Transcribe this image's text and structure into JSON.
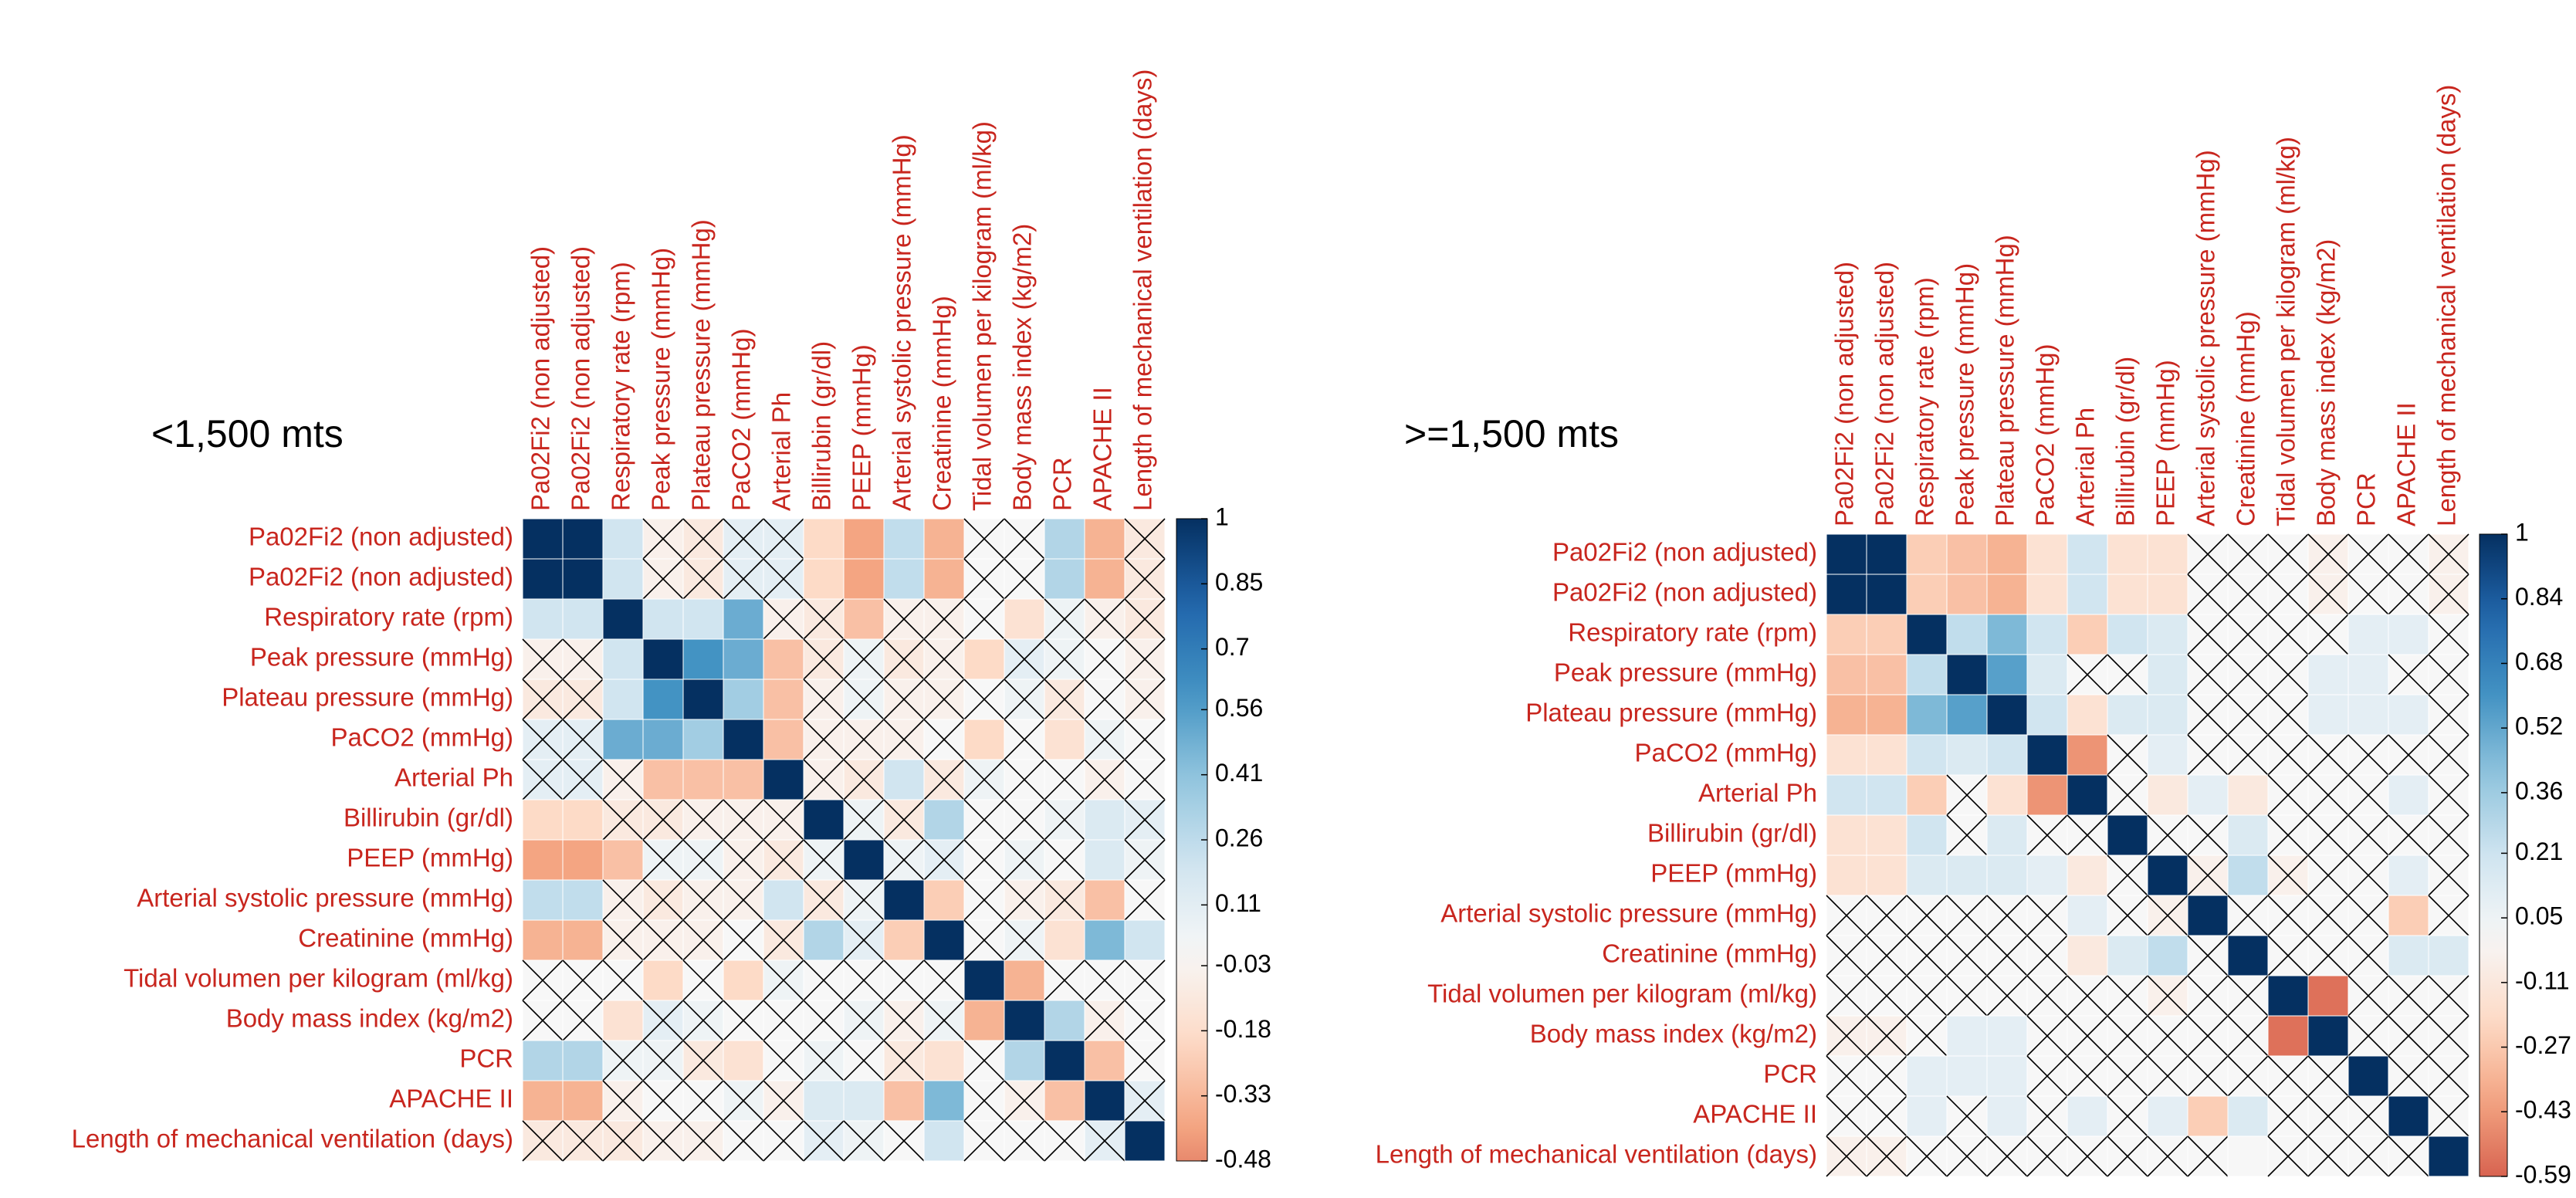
{
  "chart_data": [
    {
      "type": "heatmap",
      "title": "<1,500 mts",
      "colormap": "RdBu",
      "labels": [
        "Pa02Fi2 (non adjusted)",
        "Pa02Fi2 (non adjusted)",
        "Respiratory rate (rpm)",
        "Peak pressure (mmHg)",
        "Plateau pressure (mmHg)",
        "PaCO2 (mmHg)",
        "Arterial Ph",
        "Billirubin (gr/dl)",
        "PEEP (mmHg)",
        "Arterial systolic pressure (mmHg)",
        "Creatinine (mmHg)",
        "Tidal volumen per kilogram (ml/kg)",
        "Body mass index (kg/m2)",
        "PCR",
        "APACHE II",
        "Length of mechanical ventilation (days)"
      ],
      "matrix": [
        [
          1,
          1,
          0.2,
          -0.05,
          -0.1,
          0.1,
          0.1,
          -0.2,
          -0.4,
          0.25,
          -0.35,
          0,
          0,
          0.3,
          -0.35,
          -0.1
        ],
        [
          1,
          1,
          0.2,
          -0.05,
          -0.1,
          0.1,
          0.1,
          -0.2,
          -0.4,
          0.25,
          -0.35,
          0,
          0,
          0.3,
          -0.35,
          -0.1
        ],
        [
          0.2,
          0.2,
          1,
          0.2,
          0.2,
          0.5,
          -0.05,
          -0.1,
          -0.3,
          -0.05,
          -0.05,
          0,
          -0.15,
          0.05,
          -0.05,
          -0.1
        ],
        [
          -0.05,
          -0.05,
          0.2,
          1,
          0.6,
          0.5,
          -0.3,
          -0.1,
          0.05,
          -0.1,
          -0.05,
          -0.2,
          0.1,
          0.05,
          0,
          -0.05
        ],
        [
          -0.1,
          -0.1,
          0.2,
          0.6,
          1,
          0.35,
          -0.3,
          -0.05,
          0.05,
          -0.05,
          -0.05,
          0,
          0.05,
          -0.1,
          0,
          -0.05
        ],
        [
          0.1,
          0.1,
          0.5,
          0.5,
          0.35,
          1,
          -0.3,
          -0.05,
          -0.05,
          -0.05,
          0,
          -0.2,
          0,
          -0.15,
          0.05,
          0
        ],
        [
          0.1,
          0.1,
          -0.05,
          -0.3,
          -0.3,
          -0.3,
          1,
          -0.05,
          -0.1,
          0.2,
          -0.1,
          0.05,
          0,
          0,
          -0.05,
          0
        ],
        [
          -0.2,
          -0.2,
          -0.1,
          -0.1,
          -0.05,
          -0.05,
          -0.05,
          1,
          0.05,
          -0.1,
          0.3,
          0,
          0,
          0.05,
          0.15,
          0.1
        ],
        [
          -0.4,
          -0.4,
          -0.3,
          0.05,
          0.05,
          -0.05,
          -0.1,
          0.05,
          1,
          0.05,
          0.1,
          0,
          0.05,
          0,
          0.15,
          0.05
        ],
        [
          0.25,
          0.25,
          -0.05,
          -0.1,
          -0.05,
          -0.05,
          0.2,
          -0.1,
          0.05,
          1,
          -0.25,
          0,
          -0.05,
          -0.1,
          -0.3,
          0
        ],
        [
          -0.35,
          -0.35,
          -0.05,
          -0.05,
          -0.05,
          0,
          -0.1,
          0.3,
          0.1,
          -0.25,
          1,
          0,
          0.05,
          -0.15,
          0.45,
          0.2
        ],
        [
          0,
          0,
          0,
          -0.2,
          0,
          -0.2,
          0.05,
          0,
          0,
          0,
          0,
          1,
          -0.35,
          0,
          0,
          0
        ],
        [
          0,
          0,
          -0.15,
          0.1,
          0.05,
          0,
          0,
          0,
          0.05,
          -0.05,
          0.05,
          -0.35,
          1,
          0.3,
          -0.05,
          0
        ],
        [
          0.3,
          0.3,
          0.05,
          0.05,
          -0.1,
          -0.15,
          0,
          0.05,
          0,
          -0.1,
          -0.15,
          0,
          0.3,
          1,
          -0.3,
          0
        ],
        [
          -0.35,
          -0.35,
          -0.05,
          0,
          0,
          0.05,
          -0.05,
          0.15,
          0.15,
          -0.3,
          0.45,
          0,
          -0.05,
          -0.3,
          1,
          0.1
        ],
        [
          -0.1,
          -0.1,
          -0.1,
          -0.05,
          -0.05,
          0,
          0,
          0.1,
          0.05,
          0,
          0.2,
          0,
          0,
          0,
          0.1,
          1
        ]
      ],
      "crossed": [
        [
          0,
          0,
          0,
          1,
          1,
          1,
          1,
          0,
          0,
          0,
          0,
          1,
          1,
          0,
          0,
          1
        ],
        [
          0,
          0,
          0,
          1,
          1,
          1,
          1,
          0,
          0,
          0,
          0,
          1,
          1,
          0,
          0,
          1
        ],
        [
          0,
          0,
          0,
          0,
          0,
          0,
          1,
          1,
          0,
          1,
          1,
          1,
          0,
          1,
          1,
          1
        ],
        [
          1,
          1,
          0,
          0,
          0,
          0,
          0,
          1,
          1,
          1,
          1,
          0,
          1,
          1,
          1,
          1
        ],
        [
          1,
          1,
          0,
          0,
          0,
          0,
          0,
          1,
          1,
          1,
          1,
          1,
          1,
          1,
          1,
          1
        ],
        [
          1,
          1,
          0,
          0,
          0,
          0,
          0,
          1,
          1,
          1,
          1,
          0,
          1,
          0,
          1,
          1
        ],
        [
          1,
          1,
          1,
          0,
          0,
          0,
          0,
          1,
          1,
          0,
          1,
          1,
          1,
          1,
          1,
          1
        ],
        [
          0,
          0,
          1,
          1,
          1,
          1,
          1,
          0,
          1,
          1,
          0,
          1,
          1,
          1,
          0,
          1
        ],
        [
          0,
          0,
          0,
          1,
          1,
          1,
          1,
          1,
          0,
          1,
          1,
          1,
          1,
          1,
          0,
          1
        ],
        [
          0,
          0,
          1,
          1,
          1,
          1,
          0,
          1,
          1,
          0,
          0,
          1,
          1,
          1,
          0,
          1
        ],
        [
          0,
          0,
          1,
          1,
          1,
          1,
          1,
          0,
          1,
          0,
          0,
          1,
          1,
          0,
          0,
          0
        ],
        [
          1,
          1,
          1,
          0,
          1,
          0,
          1,
          1,
          1,
          1,
          1,
          0,
          0,
          1,
          1,
          1
        ],
        [
          1,
          1,
          0,
          1,
          1,
          1,
          1,
          1,
          1,
          1,
          1,
          0,
          0,
          0,
          1,
          1
        ],
        [
          0,
          0,
          1,
          1,
          1,
          0,
          1,
          1,
          1,
          1,
          0,
          1,
          0,
          0,
          0,
          1
        ],
        [
          0,
          0,
          1,
          1,
          1,
          1,
          1,
          0,
          0,
          0,
          0,
          1,
          1,
          0,
          0,
          1
        ],
        [
          1,
          1,
          1,
          1,
          1,
          1,
          1,
          1,
          1,
          1,
          0,
          1,
          1,
          1,
          1,
          0
        ]
      ],
      "clim": [
        -0.48,
        1
      ],
      "colorbar_ticks": [
        1,
        0.85,
        0.7,
        0.56,
        0.41,
        0.26,
        0.11,
        -0.03,
        -0.18,
        -0.33,
        -0.48
      ]
    },
    {
      "type": "heatmap",
      "title": ">=1,500 mts",
      "colormap": "RdBu",
      "labels": [
        "Pa02Fi2 (non adjusted)",
        "Pa02Fi2 (non adjusted)",
        "Respiratory rate (rpm)",
        "Peak pressure (mmHg)",
        "Plateau pressure (mmHg)",
        "PaCO2 (mmHg)",
        "Arterial Ph",
        "Billirubin (gr/dl)",
        "PEEP (mmHg)",
        "Arterial systolic pressure (mmHg)",
        "Creatinine (mmHg)",
        "Tidal volumen per kilogram (ml/kg)",
        "Body mass index (kg/m2)",
        "PCR",
        "APACHE II",
        "Length of mechanical ventilation (days)"
      ],
      "matrix": [
        [
          1,
          1,
          -0.25,
          -0.3,
          -0.35,
          -0.15,
          0.2,
          -0.15,
          -0.15,
          0,
          0,
          0,
          -0.05,
          0,
          0,
          -0.05
        ],
        [
          1,
          1,
          -0.25,
          -0.3,
          -0.35,
          -0.15,
          0.2,
          -0.15,
          -0.15,
          0,
          0,
          0,
          -0.05,
          0,
          0,
          -0.05
        ],
        [
          -0.25,
          -0.25,
          1,
          0.25,
          0.45,
          0.2,
          -0.25,
          0.2,
          0.15,
          0,
          0,
          0,
          0,
          0.1,
          0.1,
          0
        ],
        [
          -0.3,
          -0.3,
          0.25,
          1,
          0.55,
          0.15,
          0,
          0,
          0.15,
          0,
          0,
          0,
          0.1,
          0.1,
          0,
          0
        ],
        [
          -0.35,
          -0.35,
          0.45,
          0.55,
          1,
          0.2,
          -0.15,
          0.15,
          0.15,
          0,
          0,
          0,
          0.1,
          0.1,
          0.1,
          0
        ],
        [
          -0.15,
          -0.15,
          0.2,
          0.15,
          0.2,
          1,
          -0.45,
          0,
          0.1,
          0,
          0,
          0,
          0,
          0,
          0,
          0
        ],
        [
          0.2,
          0.2,
          -0.25,
          0,
          -0.15,
          -0.45,
          1,
          0,
          -0.1,
          0.1,
          -0.1,
          0,
          0,
          0,
          0.1,
          0
        ],
        [
          -0.15,
          -0.15,
          0.2,
          0,
          0.15,
          0,
          0,
          1,
          0,
          0,
          0.15,
          0,
          0,
          0,
          0,
          0
        ],
        [
          -0.15,
          -0.15,
          0.15,
          0.15,
          0.15,
          0.1,
          -0.1,
          0,
          1,
          -0.05,
          0.25,
          -0.05,
          0,
          0,
          0.1,
          0
        ],
        [
          0,
          0,
          0,
          0,
          0,
          0,
          0.1,
          0,
          -0.05,
          1,
          0,
          0,
          0,
          0,
          -0.25,
          0
        ],
        [
          0,
          0,
          0,
          0,
          0,
          0,
          -0.1,
          0.15,
          0.25,
          0,
          1,
          0,
          0,
          0,
          0.15,
          0.15
        ],
        [
          0,
          0,
          0,
          0,
          0,
          0,
          0,
          0,
          -0.05,
          0,
          0,
          1,
          -0.55,
          0,
          0,
          0
        ],
        [
          -0.05,
          -0.05,
          0,
          0.1,
          0.1,
          0,
          0,
          0,
          0,
          0,
          0,
          -0.55,
          1,
          0,
          0,
          0
        ],
        [
          0,
          0,
          0.1,
          0.1,
          0.1,
          0,
          0,
          0,
          0,
          0,
          0,
          0,
          0,
          1,
          0,
          0
        ],
        [
          0,
          0,
          0.1,
          0,
          0.1,
          0,
          0.1,
          0,
          0.1,
          -0.25,
          0.15,
          0,
          0,
          0,
          1,
          0
        ],
        [
          -0.05,
          -0.05,
          0,
          0,
          0,
          0,
          0,
          0,
          0,
          0,
          0,
          0,
          0,
          0,
          0,
          1
        ]
      ],
      "crossed": [
        [
          0,
          0,
          0,
          0,
          0,
          0,
          0,
          0,
          0,
          1,
          1,
          1,
          1,
          1,
          1,
          1
        ],
        [
          0,
          0,
          0,
          0,
          0,
          0,
          0,
          0,
          0,
          1,
          1,
          1,
          1,
          1,
          1,
          1
        ],
        [
          0,
          0,
          0,
          0,
          0,
          0,
          0,
          0,
          0,
          1,
          1,
          1,
          1,
          0,
          0,
          1
        ],
        [
          0,
          0,
          0,
          0,
          0,
          0,
          1,
          1,
          0,
          1,
          1,
          1,
          0,
          0,
          1,
          1
        ],
        [
          0,
          0,
          0,
          0,
          0,
          0,
          0,
          0,
          0,
          1,
          1,
          1,
          0,
          0,
          0,
          1
        ],
        [
          0,
          0,
          0,
          0,
          0,
          0,
          0,
          1,
          0,
          1,
          1,
          1,
          1,
          1,
          1,
          1
        ],
        [
          0,
          0,
          0,
          1,
          0,
          0,
          0,
          1,
          0,
          0,
          0,
          1,
          1,
          1,
          0,
          1
        ],
        [
          0,
          0,
          0,
          1,
          0,
          1,
          1,
          0,
          1,
          1,
          0,
          1,
          1,
          1,
          1,
          1
        ],
        [
          0,
          0,
          0,
          0,
          0,
          0,
          0,
          1,
          0,
          1,
          0,
          1,
          1,
          1,
          0,
          1
        ],
        [
          1,
          1,
          1,
          1,
          1,
          1,
          0,
          1,
          1,
          0,
          1,
          1,
          1,
          1,
          0,
          1
        ],
        [
          1,
          1,
          1,
          1,
          1,
          1,
          0,
          0,
          0,
          1,
          0,
          1,
          1,
          1,
          0,
          0
        ],
        [
          1,
          1,
          1,
          1,
          1,
          1,
          1,
          1,
          1,
          1,
          1,
          0,
          0,
          1,
          1,
          1
        ],
        [
          1,
          1,
          1,
          0,
          0,
          1,
          1,
          1,
          1,
          1,
          1,
          0,
          0,
          1,
          1,
          1
        ],
        [
          1,
          1,
          0,
          0,
          0,
          1,
          1,
          1,
          1,
          1,
          1,
          1,
          1,
          0,
          1,
          1
        ],
        [
          1,
          1,
          0,
          1,
          0,
          1,
          0,
          1,
          0,
          0,
          0,
          1,
          1,
          1,
          0,
          1
        ],
        [
          1,
          1,
          1,
          1,
          1,
          1,
          1,
          1,
          1,
          1,
          0,
          1,
          1,
          1,
          1,
          0
        ]
      ],
      "clim": [
        -0.59,
        1
      ],
      "colorbar_ticks": [
        1,
        0.84,
        0.68,
        0.52,
        0.36,
        0.21,
        0.05,
        -0.11,
        -0.27,
        -0.43,
        -0.59
      ]
    }
  ]
}
